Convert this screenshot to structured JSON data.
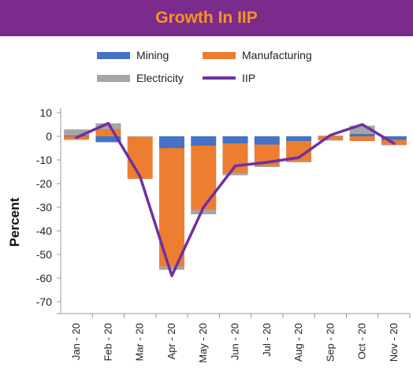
{
  "header": {
    "title": "Growth In IIP"
  },
  "colors": {
    "title_bar": "#7b2b8c",
    "title_text": "#f7941d",
    "mining": "#4472c4",
    "manufacturing": "#ed7d31",
    "electricity": "#a5a5a5",
    "iip": "#7030a0"
  },
  "legend": {
    "mining": "Mining",
    "manufacturing": "Manufacturing",
    "electricity": "Electricity",
    "iip": "IIP"
  },
  "chart_data": {
    "type": "bar",
    "stacked": true,
    "title": "Growth In IIP",
    "ylabel": "Percent",
    "xlabel": "",
    "ylim": [
      -75,
      10
    ],
    "yticks": [
      10,
      0,
      -10,
      -20,
      -30,
      -40,
      -50,
      -60,
      -70
    ],
    "categories": [
      "Jan - 20",
      "Feb - 20",
      "Mar - 20",
      "Apr - 20",
      "May - 20",
      "Jun - 20",
      "Jul - 20",
      "Aug - 20",
      "Sep - 20",
      "Oct - 20",
      "Nov - 20"
    ],
    "series": [
      {
        "name": "Mining",
        "kind": "bar",
        "values": [
          0.4,
          -2.5,
          0,
          -5,
          -4,
          -3,
          -3.5,
          -2,
          0.2,
          1,
          -1.5
        ]
      },
      {
        "name": "Manufacturing",
        "kind": "bar",
        "values": [
          -1.5,
          3,
          -18,
          -50,
          -27,
          -12.5,
          -9,
          -8.5,
          -1.5,
          -2,
          -2
        ]
      },
      {
        "name": "Electricity",
        "kind": "bar",
        "values": [
          2.5,
          2.5,
          0,
          -1.5,
          -2,
          -1,
          -0.5,
          -0.5,
          -0.3,
          3.5,
          -0.3
        ]
      },
      {
        "name": "IIP",
        "kind": "line",
        "values": [
          -0.5,
          5.5,
          -17,
          -59,
          -30,
          -12.5,
          -11,
          -9,
          0.5,
          5,
          -3
        ]
      }
    ],
    "legend_position": "top",
    "grid": false
  }
}
